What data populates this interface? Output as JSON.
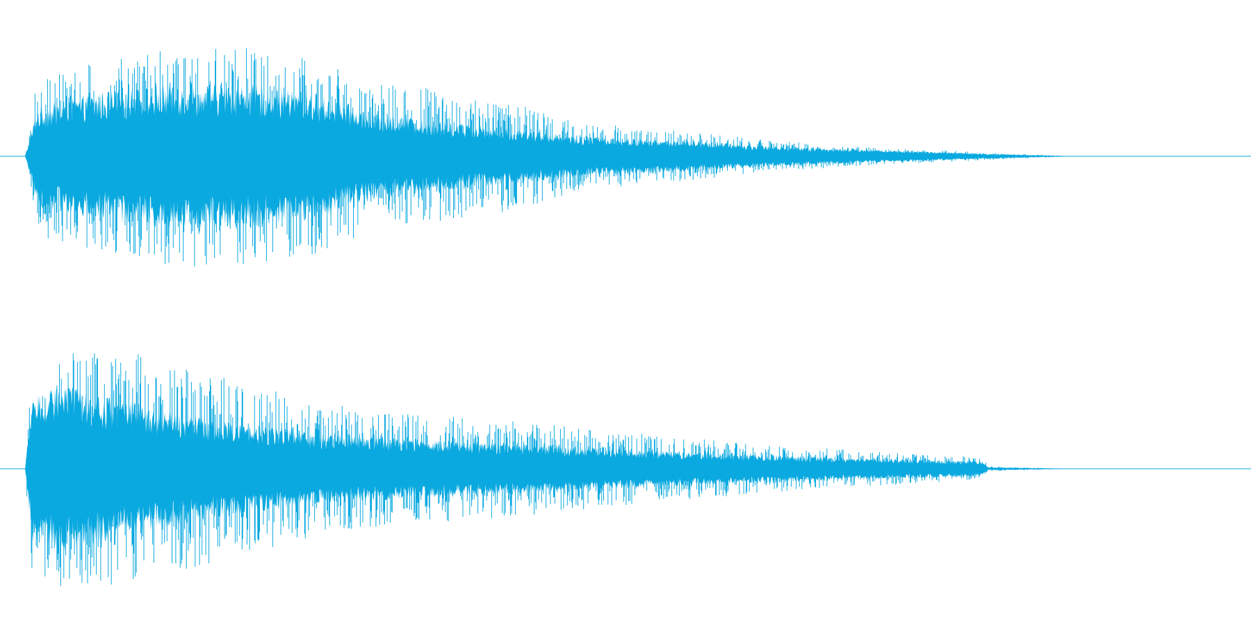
{
  "colors": {
    "background": "#ffffff",
    "waveform": "#0aa9e0",
    "baseline": "#0aa9e0"
  },
  "chart_data": {
    "type": "area",
    "subtype": "stereo-audio-waveform",
    "grid": false,
    "legend": "none",
    "x_range": [
      0,
      1
    ],
    "y_range": [
      -1,
      1
    ],
    "series": [
      {
        "channel_index": 0,
        "sound_start": 0.02,
        "sound_end": 0.86,
        "envelope": {
          "x": [
            0.02,
            0.03,
            0.08,
            0.13,
            0.2,
            0.25,
            0.3,
            0.4,
            0.47,
            0.55,
            0.62,
            0.68,
            0.72,
            0.78,
            0.82,
            0.86
          ],
          "peak": [
            0.0,
            0.72,
            0.85,
            1.0,
            0.98,
            0.9,
            0.68,
            0.52,
            0.3,
            0.22,
            0.14,
            0.09,
            0.07,
            0.04,
            0.02,
            0.0
          ],
          "body": [
            0.0,
            0.35,
            0.45,
            0.5,
            0.5,
            0.45,
            0.3,
            0.2,
            0.14,
            0.11,
            0.07,
            0.05,
            0.04,
            0.02,
            0.01,
            0.0
          ]
        }
      },
      {
        "channel_index": 1,
        "sound_start": 0.02,
        "sound_end": 0.86,
        "envelope": {
          "x": [
            0.02,
            0.026,
            0.05,
            0.1,
            0.17,
            0.25,
            0.32,
            0.4,
            0.47,
            0.55,
            0.62,
            0.68,
            0.74,
            0.785,
            0.79,
            0.86
          ],
          "peak": [
            0.0,
            0.95,
            1.0,
            1.0,
            0.8,
            0.58,
            0.47,
            0.42,
            0.34,
            0.26,
            0.2,
            0.16,
            0.12,
            0.1,
            0.02,
            0.0
          ],
          "body": [
            0.0,
            0.5,
            0.55,
            0.45,
            0.32,
            0.24,
            0.2,
            0.17,
            0.14,
            0.11,
            0.09,
            0.07,
            0.06,
            0.05,
            0.01,
            0.0
          ]
        }
      }
    ]
  }
}
